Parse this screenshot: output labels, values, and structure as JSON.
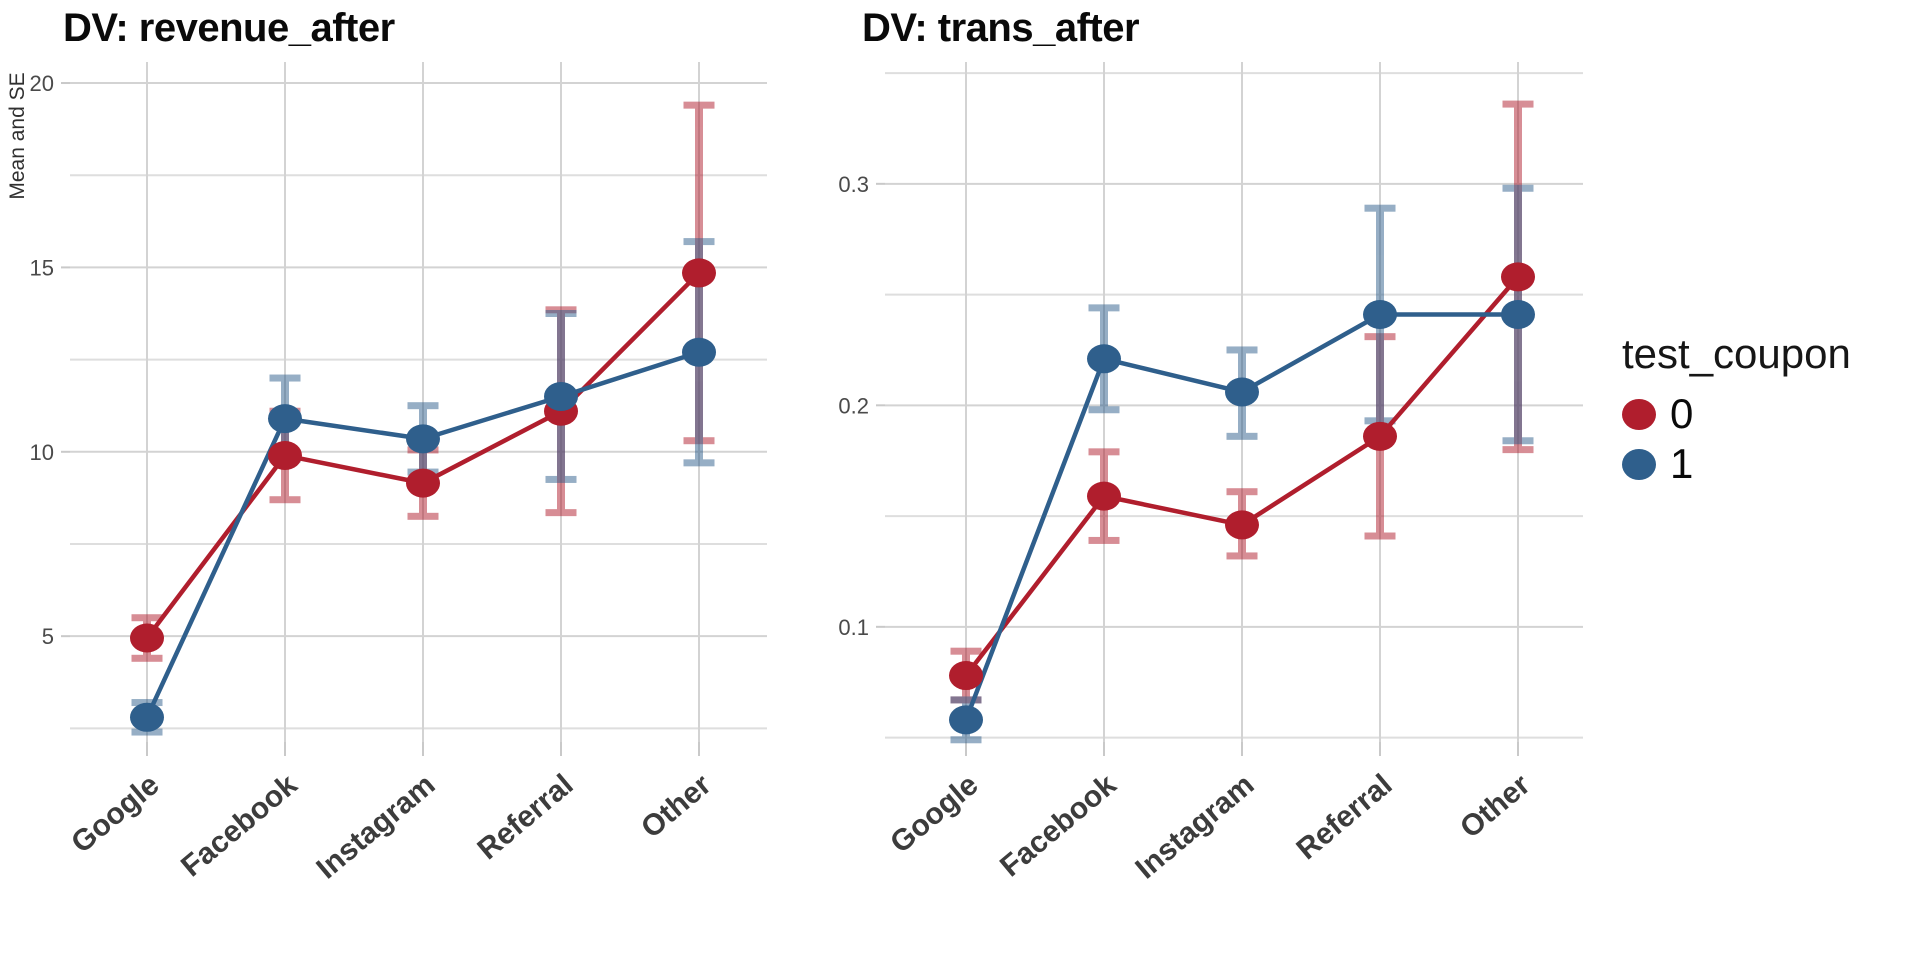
{
  "page": {
    "background": "#ffffff"
  },
  "legend": {
    "title": "test_coupon",
    "position": "right",
    "items": [
      {
        "label": "0",
        "color": "#B01E2D"
      },
      {
        "label": "1",
        "color": "#2F5F8C"
      }
    ]
  },
  "chart_data": [
    {
      "type": "line",
      "title": "DV: revenue_after",
      "ylabel": "Mean and SE",
      "xlabel": "",
      "categories": [
        "Google",
        "Facebook",
        "Instagram",
        "Referral",
        "Other"
      ],
      "ylim": [
        2.13,
        20.57
      ],
      "yticks_major": [
        5,
        10,
        15,
        20
      ],
      "yticks_minor": [
        2.5,
        7.5,
        12.5,
        17.5
      ],
      "grid": true,
      "series": [
        {
          "name": "0",
          "color": "#B01E2D",
          "means": [
            4.95,
            9.9,
            9.15,
            11.1,
            14.85
          ],
          "se_low": [
            4.4,
            8.7,
            8.25,
            8.35,
            10.3
          ],
          "se_high": [
            5.5,
            11.1,
            10.05,
            13.85,
            19.4
          ]
        },
        {
          "name": "1",
          "color": "#2F5F8C",
          "means": [
            2.8,
            10.9,
            10.35,
            11.5,
            12.7
          ],
          "se_low": [
            2.4,
            9.8,
            9.45,
            9.25,
            9.7
          ],
          "se_high": [
            3.2,
            12.0,
            11.25,
            13.75,
            15.7
          ]
        }
      ]
    },
    {
      "type": "line",
      "title": "DV: trans_after",
      "ylabel": "",
      "xlabel": "",
      "categories": [
        "Google",
        "Facebook",
        "Instagram",
        "Referral",
        "Other"
      ],
      "ylim": [
        0.048,
        0.355
      ],
      "yticks_major": [
        0.1,
        0.2,
        0.3
      ],
      "yticks_minor": [
        0.05,
        0.15,
        0.25,
        0.35
      ],
      "grid": true,
      "series": [
        {
          "name": "0",
          "color": "#B01E2D",
          "means": [
            0.078,
            0.159,
            0.146,
            0.186,
            0.258
          ],
          "se_low": [
            0.067,
            0.139,
            0.132,
            0.141,
            0.18
          ],
          "se_high": [
            0.089,
            0.179,
            0.161,
            0.231,
            0.336
          ]
        },
        {
          "name": "1",
          "color": "#2F5F8C",
          "means": [
            0.058,
            0.221,
            0.206,
            0.241,
            0.241
          ],
          "se_low": [
            0.049,
            0.198,
            0.186,
            0.193,
            0.184
          ],
          "se_high": [
            0.067,
            0.244,
            0.225,
            0.289,
            0.298
          ]
        }
      ]
    }
  ]
}
